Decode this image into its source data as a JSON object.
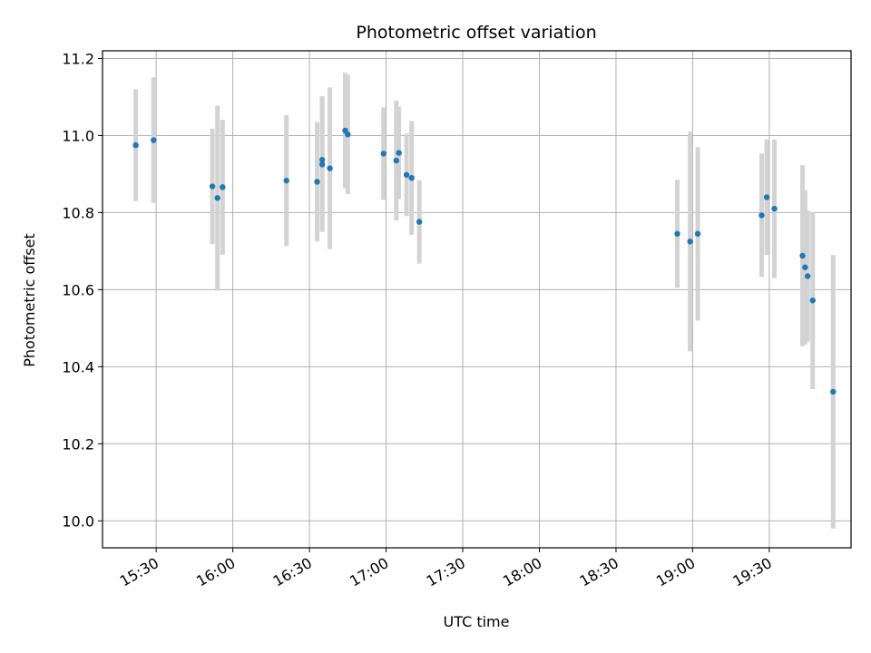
{
  "chart_data": {
    "type": "scatter",
    "title": "Photometric offset variation",
    "xlabel": "UTC time",
    "ylabel": "Photometric offset",
    "x_is_time": true,
    "xlim": [
      "15:09",
      "20:02"
    ],
    "ylim": [
      9.93,
      11.22
    ],
    "x_ticks": [
      "15:30",
      "16:00",
      "16:30",
      "17:00",
      "17:30",
      "18:00",
      "18:30",
      "19:00",
      "19:30"
    ],
    "y_ticks": [
      "10.0",
      "10.2",
      "10.4",
      "10.6",
      "10.8",
      "11.0",
      "11.2"
    ],
    "grid": true,
    "legend": "none",
    "colors": {
      "points": "#1f77b4",
      "errorbars": "#d3d3d3",
      "grid": "#b0b0b0",
      "axes": "#000000"
    },
    "series": [
      {
        "x": [
          "15:22",
          "15:29",
          "15:52",
          "15:54",
          "15:56",
          "16:21",
          "16:33",
          "16:35",
          "16:35",
          "16:38",
          "16:44",
          "16:45",
          "16:59",
          "17:04",
          "17:05",
          "17:08",
          "17:10",
          "17:13",
          "18:54",
          "18:59",
          "19:02",
          "19:27",
          "19:29",
          "19:32",
          "19:43",
          "19:44",
          "19:45",
          "19:47",
          "19:55"
        ],
        "y": [
          10.975,
          10.988,
          10.868,
          10.838,
          10.866,
          10.883,
          10.88,
          10.925,
          10.937,
          10.915,
          11.013,
          11.003,
          10.953,
          10.935,
          10.955,
          10.898,
          10.89,
          10.776,
          10.745,
          10.725,
          10.745,
          10.793,
          10.84,
          10.81,
          10.688,
          10.658,
          10.635,
          10.572,
          10.335
        ],
        "yerr": [
          0.145,
          0.163,
          0.15,
          0.24,
          0.175,
          0.17,
          0.155,
          0.175,
          0.165,
          0.21,
          0.15,
          0.155,
          0.12,
          0.155,
          0.12,
          0.107,
          0.148,
          0.108,
          0.14,
          0.285,
          0.225,
          0.16,
          0.15,
          0.18,
          0.235,
          0.2,
          0.17,
          0.23,
          0.355
        ]
      }
    ]
  }
}
